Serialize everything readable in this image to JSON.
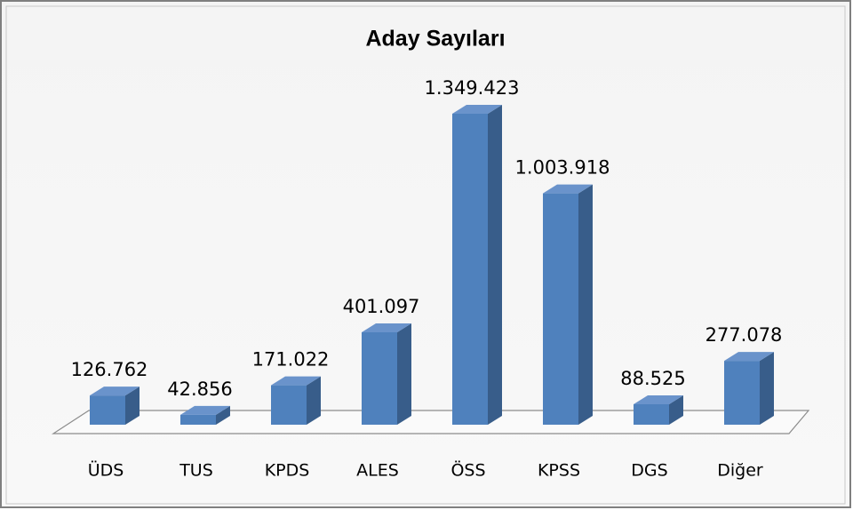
{
  "chart_data": {
    "type": "bar3d",
    "title": "Aday Sayıları",
    "categories": [
      "ÜDS",
      "TUS",
      "KPDS",
      "ALES",
      "ÖSS",
      "KPSS",
      "DGS",
      "Diğer"
    ],
    "values": [
      126762,
      42856,
      171022,
      401097,
      1349423,
      1003918,
      88525,
      277078
    ],
    "value_labels": [
      "126.762",
      "42.856",
      "171.022",
      "401.097",
      "1.349.423",
      "1.003.918",
      "88.525",
      "277.078"
    ],
    "color": "#4f81bd"
  }
}
